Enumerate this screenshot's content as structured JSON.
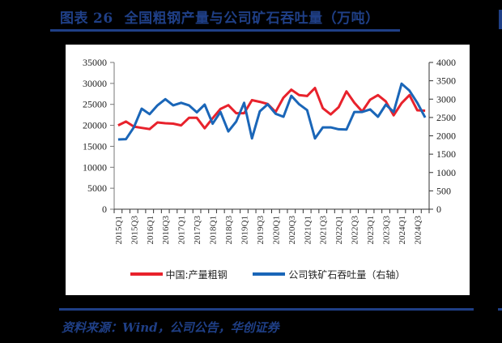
{
  "figure": {
    "label": "图表",
    "number": "26",
    "title": "全国粗钢产量与公司矿石吞吐量（万吨）",
    "source": "资料来源：Wind，公司公告，华创证券"
  },
  "colors": {
    "title": "#1f3f86",
    "series_red": "#e8222c",
    "series_blue": "#1a66b8"
  },
  "legend": {
    "red_label": "中国:产量粗钢",
    "blue_label": "公司铁矿石吞吐量（右轴）"
  },
  "chart_data": {
    "type": "line",
    "title": "全国粗钢产量与公司矿石吞吐量（万吨）",
    "xlabel": "",
    "ylabel": "",
    "y_left": {
      "ticks": [
        0,
        5000,
        10000,
        15000,
        20000,
        25000,
        30000,
        35000
      ],
      "ylim": [
        0,
        35000
      ]
    },
    "y_right": {
      "ticks": [
        0,
        500,
        1000,
        1500,
        2000,
        2500,
        3000,
        3500,
        4000
      ],
      "ylim": [
        0,
        4000
      ]
    },
    "x": [
      "2015Q1",
      "2015Q2",
      "2015Q3",
      "2015Q4",
      "2016Q1",
      "2016Q2",
      "2016Q3",
      "2016Q4",
      "2017Q1",
      "2017Q2",
      "2017Q3",
      "2017Q4",
      "2018Q1",
      "2018Q2",
      "2018Q3",
      "2018Q4",
      "2019Q1",
      "2019Q2",
      "2019Q3",
      "2019Q4",
      "2020Q1",
      "2020Q2",
      "2020Q3",
      "2020Q4",
      "2021Q1",
      "2021Q2",
      "2021Q3",
      "2021Q4",
      "2022Q1",
      "2022Q2",
      "2022Q3",
      "2022Q4",
      "2023Q1",
      "2023Q2",
      "2023Q3",
      "2023Q4",
      "2024Q1",
      "2024Q2",
      "2024Q3",
      "2024Q4"
    ],
    "x_tick_labels": [
      "2015Q1",
      "2015Q3",
      "2016Q1",
      "2016Q3",
      "2017Q1",
      "2017Q3",
      "2018Q1",
      "2018Q3",
      "2019Q1",
      "2019Q3",
      "2020Q1",
      "2020Q3",
      "2021Q1",
      "2021Q3",
      "2022Q1",
      "2022Q3",
      "2023Q1",
      "2023Q3",
      "2024Q1",
      "2024Q3"
    ],
    "series": [
      {
        "name": "中国:产量粗钢",
        "axis": "left",
        "color": "#e8222c",
        "values": [
          20000,
          20900,
          19700,
          19400,
          19100,
          20700,
          20500,
          20400,
          20000,
          21800,
          21800,
          19300,
          21700,
          23900,
          24800,
          22900,
          22900,
          26000,
          25600,
          25100,
          23200,
          26600,
          28500,
          27200,
          27000,
          28900,
          24100,
          22600,
          24300,
          28100,
          25400,
          23300,
          26100,
          27200,
          25700,
          22400,
          25300,
          27200,
          23600,
          23500
        ]
      },
      {
        "name": "公司铁矿石吞吐量（右轴）",
        "axis": "right",
        "color": "#1a66b8",
        "values": [
          1900,
          1910,
          2230,
          2740,
          2590,
          2830,
          3000,
          2830,
          2900,
          2830,
          2640,
          2850,
          2330,
          2650,
          2120,
          2390,
          2900,
          1930,
          2670,
          2860,
          2600,
          2520,
          3090,
          2860,
          2700,
          1930,
          2230,
          2230,
          2180,
          2170,
          2650,
          2650,
          2720,
          2520,
          2850,
          2650,
          3420,
          3230,
          2900,
          2500
        ]
      }
    ],
    "grid": false,
    "legend_position": "bottom"
  }
}
